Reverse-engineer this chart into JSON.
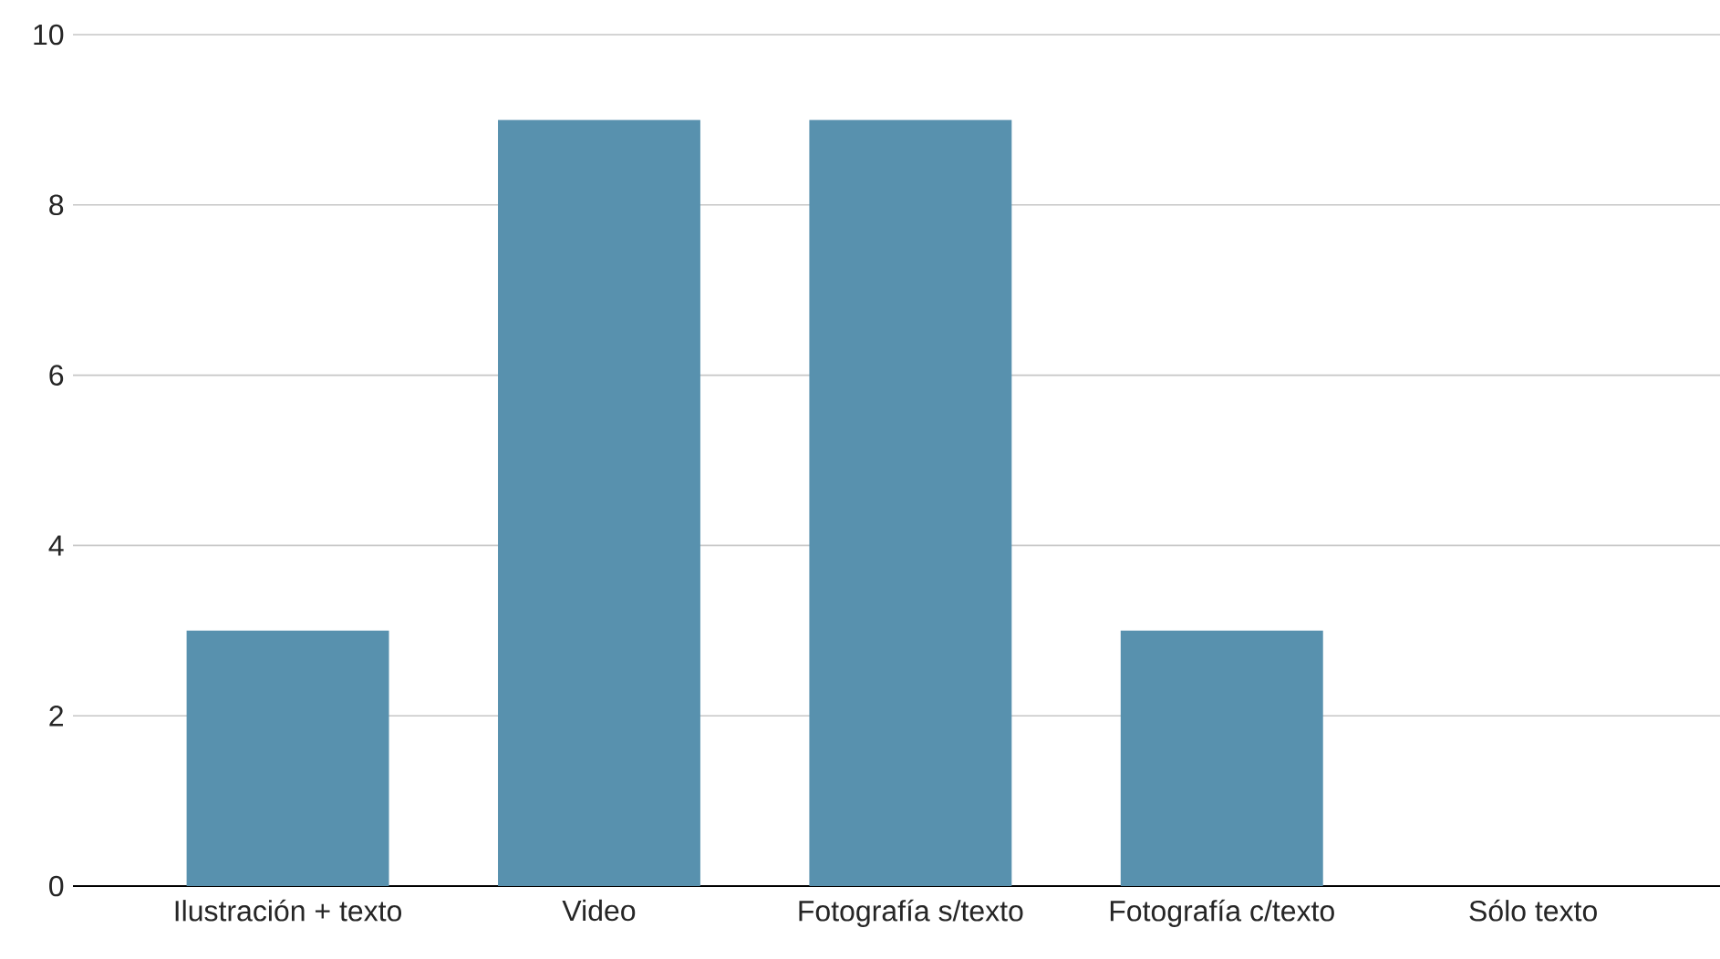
{
  "chart_data": {
    "type": "bar",
    "categories": [
      "Ilustración + texto",
      "Video",
      "Fotografía s/texto",
      "Fotografía c/texto",
      "Sólo texto"
    ],
    "values": [
      3,
      9,
      9,
      3,
      0
    ],
    "color": "#5891ae",
    "ylim": [
      0,
      10
    ],
    "yticks": [
      0,
      2,
      4,
      6,
      8,
      10
    ],
    "grid": "y"
  }
}
